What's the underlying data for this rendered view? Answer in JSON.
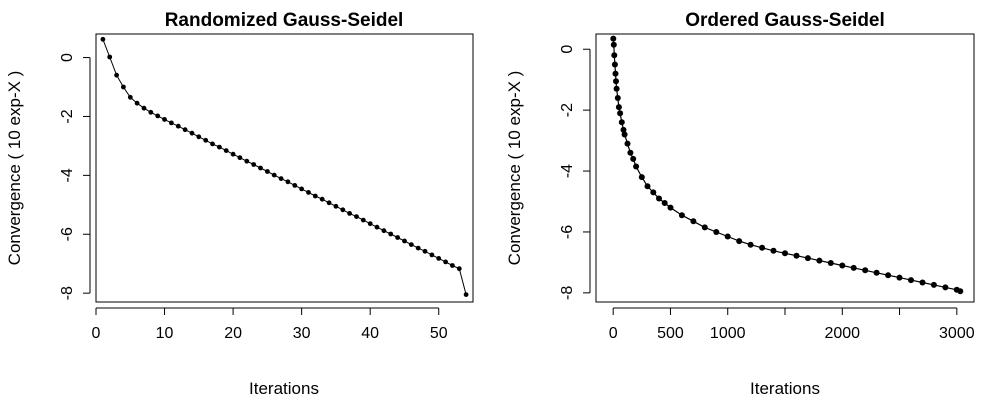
{
  "chart_data": [
    {
      "type": "line",
      "title": "Randomized Gauss-Seidel",
      "xlabel": "Iterations",
      "ylabel": "Convergence  ( 10 exp-X )",
      "xlim": [
        0,
        55
      ],
      "ylim": [
        -8.3,
        0.8
      ],
      "xticks": [
        0,
        10,
        20,
        30,
        40,
        50
      ],
      "yticks": [
        0,
        -2,
        -4,
        -6,
        -8
      ],
      "grid": false,
      "color": "#000000",
      "x": [
        1,
        2,
        3,
        4,
        5,
        6,
        7,
        8,
        9,
        10,
        11,
        12,
        13,
        14,
        15,
        16,
        17,
        18,
        19,
        20,
        21,
        22,
        23,
        24,
        25,
        26,
        27,
        28,
        29,
        30,
        31,
        32,
        33,
        34,
        35,
        36,
        37,
        38,
        39,
        40,
        41,
        42,
        43,
        44,
        45,
        46,
        47,
        48,
        49,
        50,
        51,
        52,
        53,
        54
      ],
      "y": [
        0.62,
        0.02,
        -0.6,
        -1.0,
        -1.35,
        -1.55,
        -1.72,
        -1.86,
        -1.98,
        -2.1,
        -2.22,
        -2.33,
        -2.45,
        -2.57,
        -2.69,
        -2.81,
        -2.93,
        -3.04,
        -3.16,
        -3.28,
        -3.4,
        -3.52,
        -3.63,
        -3.75,
        -3.87,
        -3.99,
        -4.11,
        -4.22,
        -4.34,
        -4.46,
        -4.58,
        -4.7,
        -4.81,
        -4.93,
        -5.05,
        -5.17,
        -5.29,
        -5.4,
        -5.52,
        -5.64,
        -5.76,
        -5.88,
        -5.99,
        -6.11,
        -6.23,
        -6.35,
        -6.47,
        -6.58,
        -6.7,
        -6.82,
        -6.94,
        -7.06,
        -7.17,
        -8.05
      ]
    },
    {
      "type": "line",
      "title": "Ordered Gauss-Seidel",
      "xlabel": "Iterations",
      "ylabel": "Convergence  ( 10 exp-X )",
      "xlim": [
        -150,
        3150
      ],
      "ylim": [
        -8.3,
        0.5
      ],
      "xticks": [
        0,
        500,
        1000,
        1500,
        2000,
        2500,
        3000
      ],
      "xtick_labels": [
        "0",
        "500",
        "1000",
        "",
        "2000",
        "",
        "3000"
      ],
      "yticks": [
        0,
        -2,
        -4,
        -6,
        -8
      ],
      "grid": false,
      "color": "#000000",
      "x": [
        1,
        5,
        10,
        15,
        20,
        25,
        30,
        40,
        50,
        60,
        75,
        90,
        100,
        125,
        150,
        175,
        200,
        250,
        300,
        350,
        400,
        450,
        500,
        600,
        700,
        800,
        900,
        1000,
        1100,
        1200,
        1300,
        1400,
        1500,
        1600,
        1700,
        1800,
        1900,
        2000,
        2100,
        2200,
        2300,
        2400,
        2500,
        2600,
        2700,
        2800,
        2900,
        3000,
        3030
      ],
      "y": [
        0.35,
        0.15,
        -0.2,
        -0.5,
        -0.8,
        -1.05,
        -1.3,
        -1.6,
        -1.9,
        -2.1,
        -2.4,
        -2.65,
        -2.8,
        -3.1,
        -3.4,
        -3.6,
        -3.85,
        -4.2,
        -4.5,
        -4.7,
        -4.9,
        -5.05,
        -5.2,
        -5.45,
        -5.65,
        -5.85,
        -6.0,
        -6.15,
        -6.3,
        -6.42,
        -6.52,
        -6.62,
        -6.7,
        -6.78,
        -6.86,
        -6.94,
        -7.02,
        -7.1,
        -7.18,
        -7.26,
        -7.34,
        -7.42,
        -7.5,
        -7.58,
        -7.66,
        -7.74,
        -7.82,
        -7.9,
        -7.95
      ]
    }
  ]
}
